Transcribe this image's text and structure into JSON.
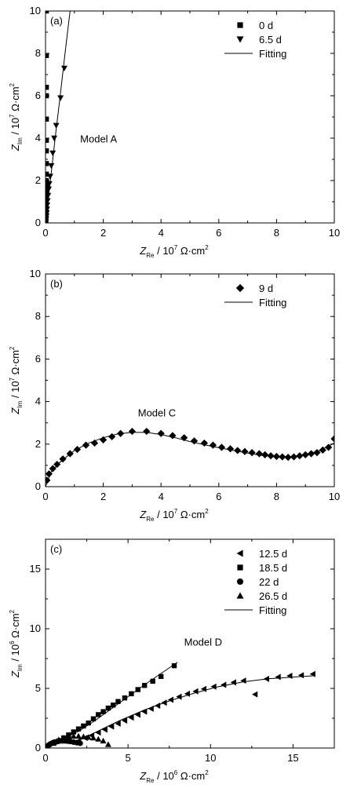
{
  "chart_data": [
    {
      "type": "scatter",
      "panel_label": "(a)",
      "annotation": "Model A",
      "xlabel": {
        "var": "Z",
        "sub": "Re",
        "unit": " / 10",
        "exp": "7",
        "tail": " Ω·cm",
        "tail_exp": "2"
      },
      "ylabel": {
        "var": "Z",
        "sub": "Im",
        "unit": " / 10",
        "exp": "7",
        "tail": " Ω·cm",
        "tail_exp": "2"
      },
      "xlim": [
        0,
        10
      ],
      "ylim": [
        0,
        10
      ],
      "xticks": [
        "0",
        "2",
        "4",
        "6",
        "8",
        "10"
      ],
      "yticks": [
        "0",
        "2",
        "4",
        "6",
        "8",
        "10"
      ],
      "legend_position": "top-right",
      "legend": [
        {
          "label": "0 d",
          "marker": "square"
        },
        {
          "label": "6.5 d",
          "marker": "triangle-down"
        },
        {
          "label": "Fitting",
          "marker": "line"
        }
      ],
      "series": [
        {
          "name": "0 d",
          "marker": "square",
          "x": [
            0.03,
            0.03,
            0.03,
            0.03,
            0.03,
            0.03,
            0.03,
            0.03,
            0.03,
            0.03,
            0.03,
            0.03,
            0.03,
            0.03,
            0.02,
            0.02,
            0.02,
            0.02,
            0.02,
            0.01,
            0.01,
            0.01,
            0.01,
            0.01
          ],
          "y": [
            10.0,
            7.9,
            6.4,
            6.0,
            4.9,
            3.9,
            3.4,
            2.8,
            2.3,
            2.0,
            1.8,
            1.6,
            1.4,
            1.2,
            1.0,
            0.8,
            0.65,
            0.5,
            0.4,
            0.3,
            0.2,
            0.12,
            0.06,
            0.02
          ]
        },
        {
          "name": "6.5 d",
          "marker": "triangle-down",
          "x": [
            0.65,
            0.52,
            0.37,
            0.3,
            0.25,
            0.2,
            0.16,
            0.13,
            0.11,
            0.09,
            0.07,
            0.06,
            0.05,
            0.04,
            0.03,
            0.02,
            0.01
          ],
          "y": [
            7.3,
            5.9,
            4.6,
            4.0,
            3.3,
            2.7,
            2.2,
            1.85,
            1.6,
            1.3,
            1.05,
            0.85,
            0.65,
            0.48,
            0.32,
            0.18,
            0.06
          ]
        },
        {
          "name": "Fitting",
          "marker": "line",
          "x": [
            0.0,
            0.1,
            0.2,
            0.35,
            0.5,
            0.7,
            0.85
          ],
          "y": [
            0.0,
            1.2,
            2.4,
            4.2,
            5.9,
            8.3,
            10.0
          ]
        }
      ]
    },
    {
      "type": "scatter",
      "panel_label": "(b)",
      "annotation": "Model C",
      "xlabel": {
        "var": "Z",
        "sub": "Re",
        "unit": " / 10",
        "exp": "7",
        "tail": " Ω·cm",
        "tail_exp": "2"
      },
      "ylabel": {
        "var": "Z",
        "sub": "Im",
        "unit": " / 10",
        "exp": "7",
        "tail": " Ω·cm",
        "tail_exp": "2"
      },
      "xlim": [
        0,
        10
      ],
      "ylim": [
        0,
        10
      ],
      "xticks": [
        "0",
        "2",
        "4",
        "6",
        "8",
        "10"
      ],
      "yticks": [
        "0",
        "2",
        "4",
        "6",
        "8",
        "10"
      ],
      "legend_position": "top-right",
      "legend": [
        {
          "label": "9 d",
          "marker": "diamond"
        },
        {
          "label": "Fitting",
          "marker": "line"
        }
      ],
      "series": [
        {
          "name": "9 d",
          "marker": "diamond",
          "x": [
            0.05,
            0.12,
            0.25,
            0.4,
            0.6,
            0.85,
            1.1,
            1.4,
            1.7,
            2.0,
            2.3,
            2.6,
            3.0,
            3.5,
            4.0,
            4.4,
            4.8,
            5.15,
            5.5,
            5.8,
            6.1,
            6.4,
            6.65,
            6.9,
            7.15,
            7.4,
            7.6,
            7.8,
            8.0,
            8.2,
            8.4,
            8.6,
            8.8,
            9.0,
            9.2,
            9.4,
            9.6,
            9.8,
            10.0
          ],
          "y": [
            0.3,
            0.6,
            0.85,
            1.05,
            1.3,
            1.55,
            1.75,
            1.95,
            2.05,
            2.2,
            2.35,
            2.5,
            2.6,
            2.6,
            2.5,
            2.4,
            2.3,
            2.15,
            2.05,
            1.95,
            1.85,
            1.78,
            1.7,
            1.65,
            1.6,
            1.55,
            1.5,
            1.45,
            1.42,
            1.4,
            1.38,
            1.4,
            1.45,
            1.5,
            1.55,
            1.6,
            1.72,
            1.85,
            2.25
          ]
        },
        {
          "name": "Fitting",
          "marker": "line",
          "x": [
            0.0,
            0.2,
            0.5,
            1.0,
            1.5,
            2.0,
            2.5,
            3.0,
            3.5,
            4.0,
            4.5,
            5.0,
            5.5,
            6.0,
            6.5,
            7.0,
            7.5,
            8.0,
            8.5,
            9.0,
            9.5,
            10.0
          ],
          "y": [
            0.0,
            0.7,
            1.15,
            1.7,
            2.05,
            2.3,
            2.48,
            2.55,
            2.55,
            2.45,
            2.3,
            2.12,
            1.97,
            1.83,
            1.7,
            1.58,
            1.47,
            1.4,
            1.4,
            1.5,
            1.7,
            2.05
          ]
        }
      ]
    },
    {
      "type": "scatter",
      "panel_label": "(c)",
      "annotation": "Model D",
      "xlabel": {
        "var": "Z",
        "sub": "Re",
        "unit": " / 10",
        "exp": "6",
        "tail": " Ω·cm",
        "tail_exp": "2"
      },
      "ylabel": {
        "var": "Z",
        "sub": "Im",
        "unit": " / 10",
        "exp": "6",
        "tail": " Ω·cm",
        "tail_exp": "2"
      },
      "xlim": [
        0,
        17.5
      ],
      "ylim": [
        0,
        17.5
      ],
      "xticks": [
        "0",
        "5",
        "10",
        "15"
      ],
      "xtick_values": [
        0,
        5,
        10,
        15
      ],
      "yticks": [
        "0",
        "5",
        "10",
        "15"
      ],
      "ytick_values": [
        0,
        5,
        10,
        15
      ],
      "legend_position": "top-right",
      "legend": [
        {
          "label": "12.5 d",
          "marker": "triangle-left"
        },
        {
          "label": "18.5 d",
          "marker": "square"
        },
        {
          "label": "22 d",
          "marker": "circle"
        },
        {
          "label": "26.5 d",
          "marker": "triangle-up"
        },
        {
          "label": "Fitting",
          "marker": "line"
        }
      ],
      "series": [
        {
          "name": "12.5 d",
          "marker": "triangle-left",
          "x": [
            2.0,
            2.4,
            2.8,
            3.2,
            3.6,
            4.0,
            4.4,
            4.8,
            5.2,
            5.6,
            6.0,
            6.4,
            6.8,
            7.2,
            7.6,
            8.1,
            8.6,
            9.1,
            9.6,
            10.2,
            10.8,
            11.4,
            12.0,
            12.7,
            13.4,
            14.1,
            14.8,
            15.5,
            16.2
          ],
          "y": [
            0.6,
            0.85,
            1.05,
            1.3,
            1.55,
            1.8,
            2.05,
            2.3,
            2.55,
            2.8,
            3.05,
            3.3,
            3.55,
            3.8,
            4.05,
            4.3,
            4.55,
            4.75,
            4.95,
            5.15,
            5.3,
            5.5,
            5.65,
            4.5,
            5.8,
            5.95,
            6.05,
            6.1,
            6.2
          ]
        },
        {
          "name": "18.5 d",
          "marker": "square",
          "x": [
            0.5,
            0.8,
            1.1,
            1.4,
            1.7,
            2.0,
            2.3,
            2.6,
            2.9,
            3.2,
            3.5,
            3.8,
            4.1,
            4.4,
            4.8,
            5.2,
            5.6,
            6.0,
            6.5,
            7.0,
            7.8
          ],
          "y": [
            0.4,
            0.6,
            0.85,
            1.1,
            1.35,
            1.6,
            1.85,
            2.1,
            2.45,
            2.8,
            3.05,
            3.35,
            3.6,
            3.9,
            4.2,
            4.55,
            4.9,
            5.25,
            5.6,
            6.0,
            6.9
          ]
        },
        {
          "name": "22 d",
          "marker": "circle",
          "x": [
            0.1,
            0.2,
            0.3,
            0.45,
            0.6,
            0.75,
            0.9,
            1.05,
            1.2,
            1.35,
            1.5,
            1.7,
            1.9,
            2.1
          ],
          "y": [
            0.15,
            0.25,
            0.35,
            0.45,
            0.5,
            0.55,
            0.6,
            0.6,
            0.6,
            0.58,
            0.55,
            0.5,
            0.45,
            0.4
          ]
        },
        {
          "name": "26.5 d",
          "marker": "triangle-up",
          "x": [
            0.2,
            0.5,
            0.8,
            1.1,
            1.4,
            1.7,
            2.0,
            2.3,
            2.6,
            2.9,
            3.2,
            3.5,
            3.8
          ],
          "y": [
            0.3,
            0.5,
            0.7,
            0.85,
            0.95,
            1.0,
            1.0,
            0.95,
            0.9,
            0.85,
            0.75,
            0.6,
            0.3
          ]
        },
        {
          "name": "Fitting",
          "marker": "line",
          "x": [
            1.8,
            3.0,
            4.5,
            6.0,
            7.5,
            9.0,
            10.5,
            12.0,
            13.5,
            15.0,
            16.2
          ],
          "y": [
            0.5,
            1.3,
            2.3,
            3.2,
            3.95,
            4.6,
            5.15,
            5.55,
            5.8,
            5.95,
            6.05
          ]
        },
        {
          "name": "Fitting",
          "marker": "line",
          "x": [
            0.0,
            1.0,
            2.0,
            3.0,
            4.0,
            5.0,
            6.0,
            7.0,
            8.0
          ],
          "y": [
            0.2,
            0.75,
            1.4,
            2.3,
            3.3,
            4.3,
            5.3,
            6.25,
            7.2
          ]
        }
      ]
    }
  ]
}
